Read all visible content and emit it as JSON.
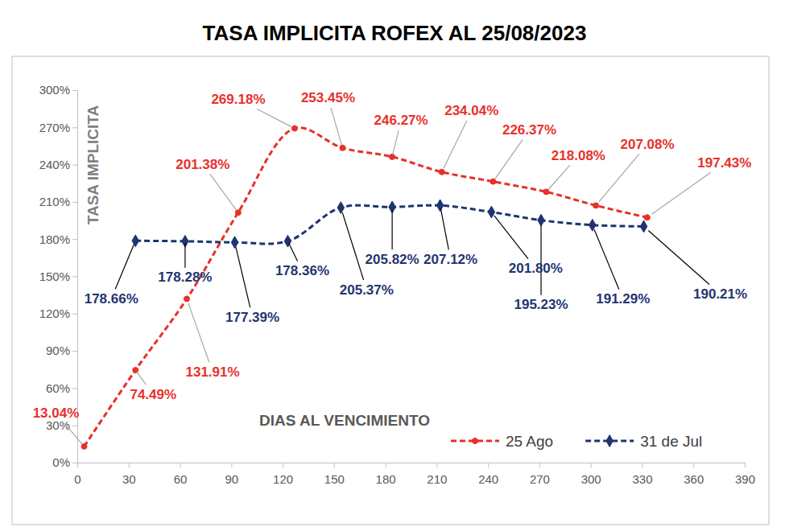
{
  "chart_data": {
    "type": "line",
    "title": "TASA IMPLICITA ROFEX AL 25/08/2023",
    "x_label": "DIAS AL VENCIMIENTO",
    "y_label": "TASA IMPLICITA",
    "xlim": [
      0,
      390
    ],
    "xticks": [
      0,
      30,
      60,
      90,
      120,
      150,
      180,
      210,
      240,
      270,
      300,
      330,
      360,
      390
    ],
    "ylim": [
      0,
      300
    ],
    "yticks": [
      {
        "value": 0,
        "label": "0%"
      },
      {
        "value": 30,
        "label": "30%"
      },
      {
        "value": 60,
        "label": "60%"
      },
      {
        "value": 90,
        "label": "90%"
      },
      {
        "value": 120,
        "label": "120%"
      },
      {
        "value": 150,
        "label": "150%"
      },
      {
        "value": 180,
        "label": "180%"
      },
      {
        "value": 210,
        "label": "210%"
      },
      {
        "value": 240,
        "label": "240%"
      },
      {
        "value": 270,
        "label": "270%"
      },
      {
        "value": 300,
        "label": "300%"
      }
    ],
    "grid": false,
    "legend": "lower right",
    "data_labels": true,
    "series": [
      {
        "name": "25 Ago",
        "color": "#e8302a",
        "marker": "circle",
        "line_style": "dashed",
        "x": [
          4,
          34,
          64,
          94,
          127,
          155,
          184,
          213,
          243,
          274,
          303,
          333
        ],
        "values": [
          13.04,
          74.49,
          131.91,
          201.38,
          269.18,
          253.45,
          246.27,
          234.04,
          226.37,
          218.08,
          207.08,
          197.43
        ],
        "value_labels": [
          "13.04%",
          "74.49%",
          "131.91%",
          "201.38%",
          "269.18%",
          "253.45%",
          "246.27%",
          "234.04%",
          "226.37%",
          "218.08%",
          "207.08%",
          "197.43%"
        ]
      },
      {
        "name": "31 de Jul",
        "color": "#1f3470",
        "marker": "diamond",
        "line_style": "dashed",
        "x": [
          34,
          63,
          92,
          123,
          154,
          184,
          212,
          242,
          271,
          301,
          331
        ],
        "values": [
          178.66,
          178.28,
          177.39,
          178.36,
          205.37,
          205.82,
          207.12,
          201.8,
          195.23,
          191.29,
          190.21
        ],
        "value_labels": [
          "178.66%",
          "178.28%",
          "177.39%",
          "178.36%",
          "205.37%",
          "205.82%",
          "207.12%",
          "201.80%",
          "195.23%",
          "191.29%",
          "190.21%"
        ]
      }
    ]
  }
}
